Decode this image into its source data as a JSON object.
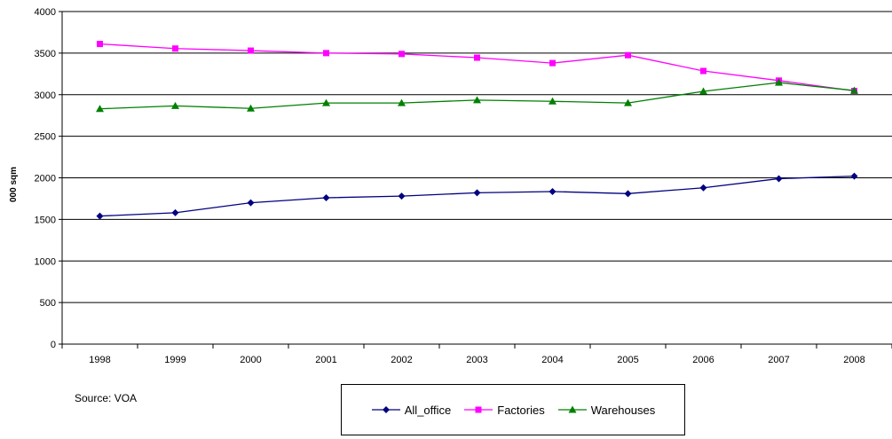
{
  "chart_data": {
    "type": "line",
    "title": "",
    "xlabel": "",
    "ylabel": "000 sqm",
    "categories": [
      "1998",
      "1999",
      "2000",
      "2001",
      "2002",
      "2003",
      "2004",
      "2005",
      "2006",
      "2007",
      "2008"
    ],
    "ylim": [
      0,
      4000
    ],
    "yticks": [
      0,
      500,
      1000,
      1500,
      2000,
      2500,
      3000,
      3500,
      4000
    ],
    "grid": "horizontal",
    "legend_position": "bottom",
    "series": [
      {
        "name": "All_office",
        "color": "#000080",
        "marker": "diamond",
        "values": [
          1540,
          1580,
          1700,
          1760,
          1780,
          1820,
          1835,
          1810,
          1880,
          1990,
          2020
        ]
      },
      {
        "name": "Factories",
        "color": "#ff00ff",
        "marker": "square",
        "values": [
          3610,
          3555,
          3530,
          3500,
          3490,
          3445,
          3380,
          3475,
          3285,
          3170,
          3045
        ]
      },
      {
        "name": "Warehouses",
        "color": "#008000",
        "marker": "triangle",
        "values": [
          2830,
          2865,
          2835,
          2900,
          2900,
          2935,
          2920,
          2900,
          3040,
          3145,
          3050
        ]
      }
    ]
  },
  "footer": {
    "source": "Source: VOA"
  }
}
